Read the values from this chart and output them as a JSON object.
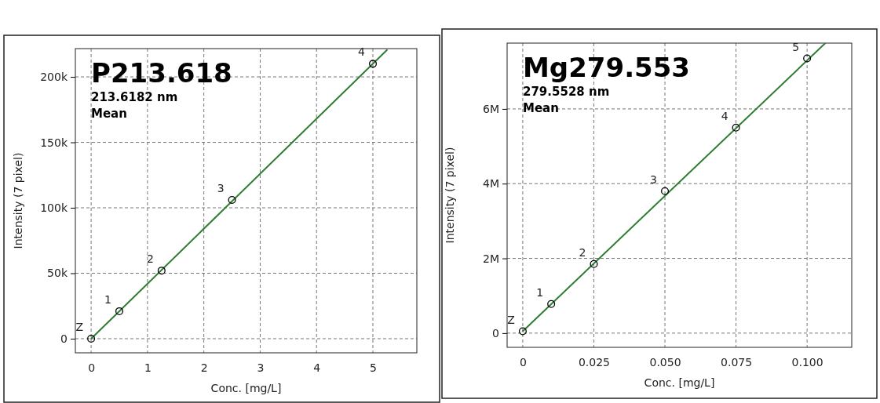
{
  "chart_data": [
    {
      "type": "scatter",
      "title": "P213.618",
      "subtitle": "213.6182 nm",
      "xlabel": "Conc. [mg/L]",
      "ylabel": "Intensity (7 pixel)",
      "annotations": [
        "Mean",
        {
          "text": "Z",
          "x": 0,
          "y": 0
        },
        {
          "text": "1",
          "x": 0.5,
          "y": 21000
        },
        {
          "text": "2",
          "x": 1.25,
          "y": 52000
        },
        {
          "text": "3",
          "x": 2.5,
          "y": 106000
        },
        {
          "text": "4",
          "x": 5,
          "y": 210000
        }
      ],
      "xlim": [
        -0.28,
        5.78
      ],
      "ylim": [
        -10800,
        221600
      ],
      "xticks": [
        0,
        1,
        2,
        3,
        4,
        5
      ],
      "yticks": [
        0,
        {
          "value": 50000,
          "label": "50k"
        },
        {
          "value": 100000,
          "label": "100k"
        },
        {
          "value": 150000,
          "label": "150k"
        },
        {
          "value": 200000,
          "label": "200k"
        }
      ],
      "grid": true,
      "series": [
        {
          "type": "line",
          "marker": "none",
          "color": "#2e7d32",
          "x": [
            0,
            5.25
          ],
          "values": [
            0,
            220500
          ]
        },
        {
          "marker": "circle",
          "color": "#000000",
          "x": [
            0,
            0.5,
            1.25,
            2.5,
            5
          ],
          "values": [
            0,
            21000,
            52000,
            106000,
            210000
          ]
        }
      ]
    },
    {
      "type": "scatter",
      "title": "Mg279.553",
      "subtitle": "279.5528 nm",
      "xlabel": "Conc. [mg/L]",
      "ylabel": "Intensity (7 pixel)",
      "annotations": [
        "Mean",
        {
          "text": "Z",
          "x": 0,
          "y": 50000
        },
        {
          "text": "1",
          "x": 0.01,
          "y": 780000
        },
        {
          "text": "2",
          "x": 0.025,
          "y": 1850000
        },
        {
          "text": "3",
          "x": 0.05,
          "y": 3800000
        },
        {
          "text": "4",
          "x": 0.075,
          "y": 5500000
        },
        {
          "text": "5",
          "x": 0.1,
          "y": 7350000
        }
      ],
      "xlim": [
        -0.0055,
        0.1157
      ],
      "ylim": [
        -380000,
        7760000
      ],
      "xticks": [
        0,
        0.025,
        {
          "value": 0.05,
          "label": "0.050"
        },
        {
          "value": 0.075,
          "label": "0.075"
        },
        {
          "value": 0.1,
          "label": "0.100"
        }
      ],
      "yticks": [
        0,
        {
          "value": 2000000,
          "label": "2M"
        },
        {
          "value": 4000000,
          "label": "4M"
        },
        {
          "value": 6000000,
          "label": "6M"
        }
      ],
      "grid": true,
      "series": [
        {
          "type": "line",
          "marker": "none",
          "color": "#2e7d32",
          "x": [
            0,
            0.1064
          ],
          "values": [
            50000,
            7760000
          ]
        },
        {
          "marker": "circle",
          "color": "#000000",
          "x": [
            0,
            0.01,
            0.025,
            0.05,
            0.075,
            0.1
          ],
          "values": [
            50000,
            780000,
            1850000,
            3800000,
            5500000,
            7350000
          ]
        }
      ]
    }
  ]
}
